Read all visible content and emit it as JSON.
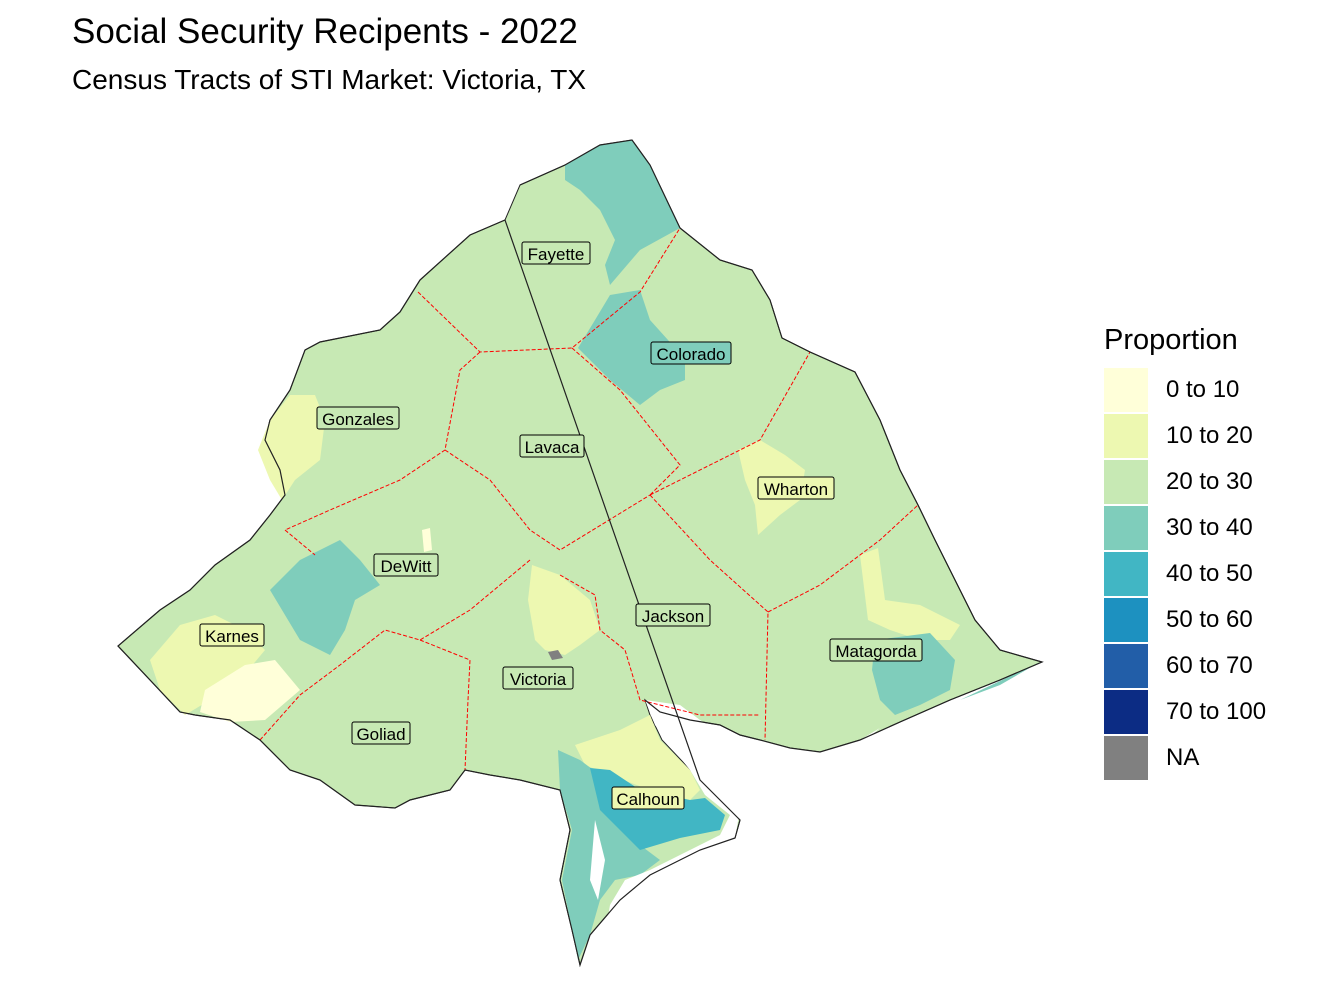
{
  "title": "Social Security Recipents - 2022",
  "subtitle": "Census Tracts of STI Market: Victoria, TX",
  "legend": {
    "title": "Proportion",
    "items": [
      {
        "label": "0 to 10",
        "color": "#ffffd9"
      },
      {
        "label": "10 to 20",
        "color": "#edf8b1"
      },
      {
        "label": "20 to 30",
        "color": "#c7e9b4"
      },
      {
        "label": "30 to 40",
        "color": "#7fcdbb"
      },
      {
        "label": "40 to 50",
        "color": "#41b6c4"
      },
      {
        "label": "50 to 60",
        "color": "#1d91c0"
      },
      {
        "label": "60 to 70",
        "color": "#225ea8"
      },
      {
        "label": "70 to 100",
        "color": "#0c2c84"
      },
      {
        "label": "NA",
        "color": "#808080"
      }
    ]
  },
  "counties": [
    {
      "name": "Fayette"
    },
    {
      "name": "Colorado"
    },
    {
      "name": "Gonzales"
    },
    {
      "name": "Lavaca"
    },
    {
      "name": "Wharton"
    },
    {
      "name": "DeWitt"
    },
    {
      "name": "Jackson"
    },
    {
      "name": "Karnes"
    },
    {
      "name": "Victoria"
    },
    {
      "name": "Matagorda"
    },
    {
      "name": "Goliad"
    },
    {
      "name": "Calhoun"
    }
  ],
  "colors": {
    "county_border": "#ff0000",
    "outline": "#333333",
    "water": "#ffffff"
  }
}
